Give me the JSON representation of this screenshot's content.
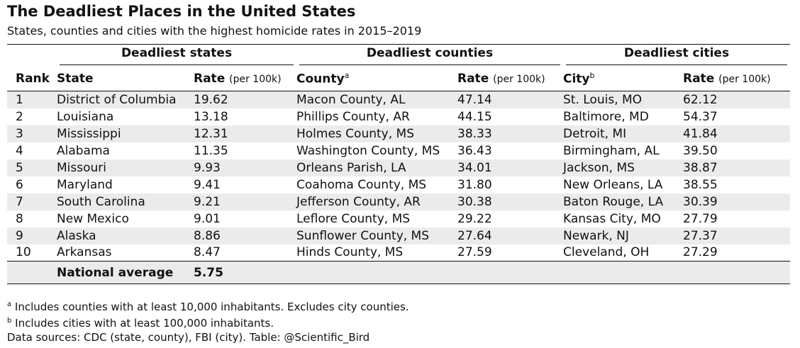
{
  "title": "The Deadliest Places in the United States",
  "subtitle": "States, counties and cities with the highest homicide rates in 2015–2019",
  "groups": {
    "states": "Deadliest states",
    "counties": "Deadliest counties",
    "cities": "Deadliest cities"
  },
  "headers": {
    "rank": "Rank",
    "state": "State",
    "county": "County",
    "county_mark": "a",
    "city": "City",
    "city_mark": "b",
    "rate": "Rate",
    "rate_unit": "(per 100k)"
  },
  "rows": [
    {
      "rank": "1",
      "state": "District of Columbia",
      "state_rate": "19.62",
      "county": "Macon County, AL",
      "county_rate": "47.14",
      "city": "St. Louis, MO",
      "city_rate": "62.12"
    },
    {
      "rank": "2",
      "state": "Louisiana",
      "state_rate": "13.18",
      "county": "Phillips County, AR",
      "county_rate": "44.15",
      "city": "Baltimore, MD",
      "city_rate": "54.37"
    },
    {
      "rank": "3",
      "state": "Mississippi",
      "state_rate": "12.31",
      "county": "Holmes County, MS",
      "county_rate": "38.33",
      "city": "Detroit, MI",
      "city_rate": "41.84"
    },
    {
      "rank": "4",
      "state": "Alabama",
      "state_rate": "11.35",
      "county": "Washington County, MS",
      "county_rate": "36.43",
      "city": "Birmingham, AL",
      "city_rate": "39.50"
    },
    {
      "rank": "5",
      "state": "Missouri",
      "state_rate": "9.93",
      "county": "Orleans Parish, LA",
      "county_rate": "34.01",
      "city": "Jackson, MS",
      "city_rate": "38.87"
    },
    {
      "rank": "6",
      "state": "Maryland",
      "state_rate": "9.41",
      "county": "Coahoma County, MS",
      "county_rate": "31.80",
      "city": "New Orleans, LA",
      "city_rate": "38.55"
    },
    {
      "rank": "7",
      "state": "South Carolina",
      "state_rate": "9.21",
      "county": "Jefferson County, AR",
      "county_rate": "30.38",
      "city": "Baton Rouge, LA",
      "city_rate": "30.39"
    },
    {
      "rank": "8",
      "state": "New Mexico",
      "state_rate": "9.01",
      "county": "Leflore County, MS",
      "county_rate": "29.22",
      "city": "Kansas City, MO",
      "city_rate": "27.79"
    },
    {
      "rank": "9",
      "state": "Alaska",
      "state_rate": "8.86",
      "county": "Sunflower County, MS",
      "county_rate": "27.64",
      "city": "Newark, NJ",
      "city_rate": "27.37"
    },
    {
      "rank": "10",
      "state": "Arkansas",
      "state_rate": "8.47",
      "county": "Hinds County, MS",
      "county_rate": "27.59",
      "city": "Cleveland, OH",
      "city_rate": "27.29"
    }
  ],
  "national": {
    "label": "National average",
    "rate": "5.75"
  },
  "notes": {
    "a_mark": "a",
    "a_text": "Includes counties with at least 10,000 inhabitants. Excludes city counties.",
    "b_mark": "b",
    "b_text": "Includes cities with at least 100,000 inhabitants.",
    "sources": "Data sources: CDC (state, county), FBI (city). Table: @Scientific_Bird"
  }
}
